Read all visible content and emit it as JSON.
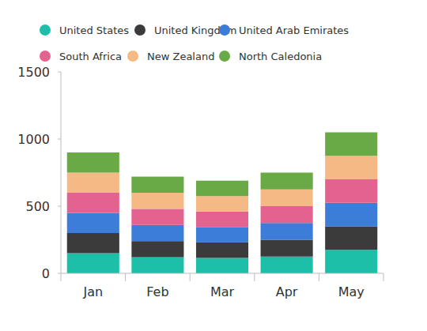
{
  "chart_data": {
    "type": "bar",
    "stacked": true,
    "grid": false,
    "legend": "top",
    "categories": [
      "Jan",
      "Feb",
      "Mar",
      "Apr",
      "May"
    ],
    "ylim": [
      0,
      1500
    ],
    "yticks": [
      0,
      500,
      1000,
      1500
    ],
    "series": [
      {
        "name": "United States",
        "color": "#1ebfa8",
        "values": [
          150,
          120,
          115,
          125,
          175
        ]
      },
      {
        "name": "United Kingdom",
        "color": "#3b3b3b",
        "values": [
          150,
          120,
          115,
          125,
          175
        ]
      },
      {
        "name": "United Arab Emirates",
        "color": "#3b7dd8",
        "values": [
          150,
          120,
          115,
          125,
          175
        ]
      },
      {
        "name": "South Africa",
        "color": "#e3628f",
        "values": [
          150,
          120,
          115,
          125,
          175
        ]
      },
      {
        "name": "New Zealand",
        "color": "#f5b985",
        "values": [
          150,
          120,
          115,
          125,
          175
        ]
      },
      {
        "name": "North Caledonia",
        "color": "#6aaa46",
        "values": [
          150,
          120,
          115,
          125,
          175
        ]
      }
    ]
  }
}
